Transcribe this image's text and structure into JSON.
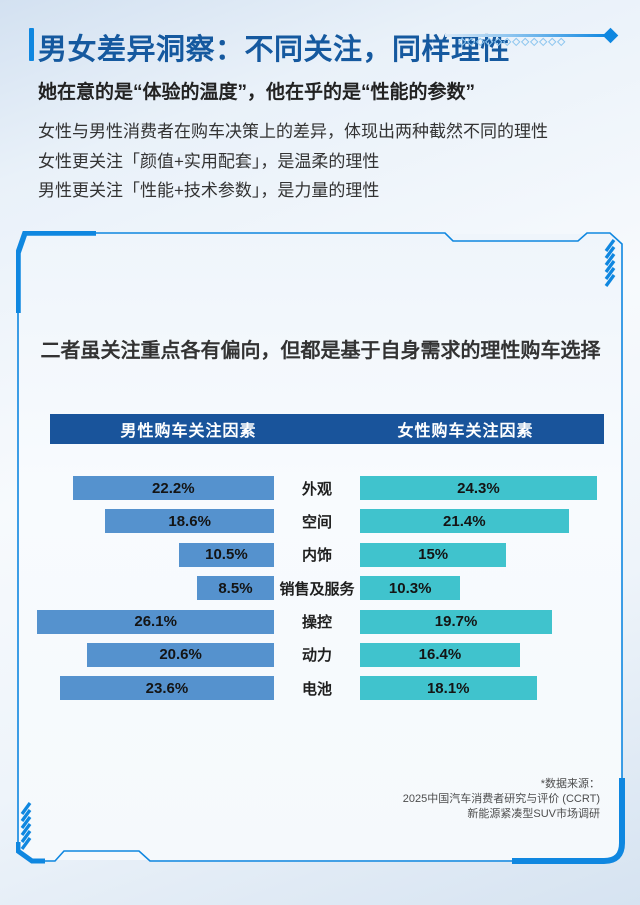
{
  "header": {
    "title": "男女差异洞察：不同关注，同样理性",
    "subtitle": "她在意的是“体验的温度”，他在乎的是“性能的参数”",
    "body_lines": [
      "女性与男性消费者在购车决策上的差异，体现出两种截然不同的理性",
      "女性更关注「颜值+实用配套」，是温柔的理性",
      "男性更关注「性能+技术参数」，是力量的理性"
    ],
    "deco_diamond_count": 12
  },
  "card": {
    "heading": "二者虽关注重点各有偏向，但都是基于自身需求的理性购车选择",
    "legend": {
      "male": "男性购车关注因素",
      "female": "女性购车关注因素"
    },
    "footer_lines": [
      "*数据来源：",
      "2025中国汽车消费者研究与评价 (CCRT)",
      "新能源紧凑型SUV市场调研"
    ]
  },
  "chart_data": {
    "type": "bar",
    "variant": "bidirectional-tornado",
    "title": "二者虽关注重点各有偏向，但都是基于自身需求的理性购车选择",
    "categories": [
      "外观",
      "空间",
      "内饰",
      "销售及服务",
      "操控",
      "动力",
      "电池"
    ],
    "series": [
      {
        "name": "男性购车关注因素",
        "side": "left",
        "unit": "%",
        "color": "#5592ce",
        "values": [
          22.2,
          18.6,
          10.5,
          8.5,
          26.1,
          20.6,
          23.6
        ]
      },
      {
        "name": "女性购车关注因素",
        "side": "right",
        "unit": "%",
        "color": "#40c3cd",
        "values": [
          24.3,
          21.4,
          15,
          10.3,
          19.7,
          16.4,
          18.1
        ]
      }
    ],
    "value_labels": [
      [
        "22.2%",
        "18.6%",
        "10.5%",
        "8.5%",
        "26.1%",
        "20.6%",
        "23.6%"
      ],
      [
        "24.3%",
        "21.4%",
        "15%",
        "10.3%",
        "19.7%",
        "16.4%",
        "18.1%"
      ]
    ],
    "value_axis_range": [
      0,
      27
    ],
    "grid": false,
    "legend_position": "top"
  },
  "colors": {
    "accent": "#0f87e0",
    "title": "#15599f",
    "headerbar": "#19549b",
    "male_bar": "#5592ce",
    "female_bar": "#40c3cd",
    "card_frame": "#0f87e0"
  }
}
